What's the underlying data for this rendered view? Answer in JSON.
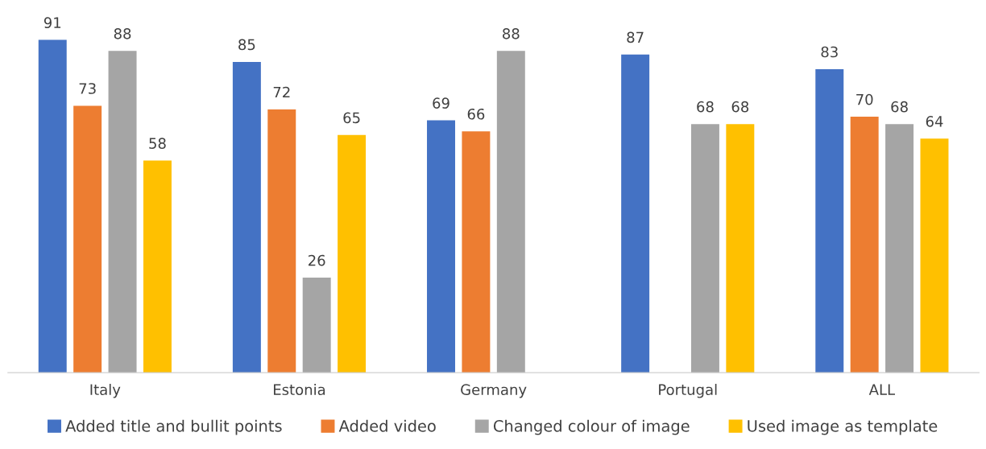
{
  "chart_data": {
    "type": "bar",
    "categories": [
      "Italy",
      "Estonia",
      "Germany",
      "Portugal",
      "ALL"
    ],
    "series": [
      {
        "name": "Added title and bullit points",
        "color": "#4472c4",
        "values": [
          91,
          85,
          69,
          87,
          83
        ]
      },
      {
        "name": "Added video",
        "color": "#ed7d31",
        "values": [
          73,
          72,
          66,
          null,
          70
        ]
      },
      {
        "name": "Changed colour of image",
        "color": "#a5a5a5",
        "values": [
          88,
          26,
          88,
          68,
          68
        ]
      },
      {
        "name": "Used image as template",
        "color": "#ffc000",
        "values": [
          58,
          65,
          null,
          68,
          64
        ]
      }
    ],
    "data_labels": true,
    "legend": "bottom"
  }
}
